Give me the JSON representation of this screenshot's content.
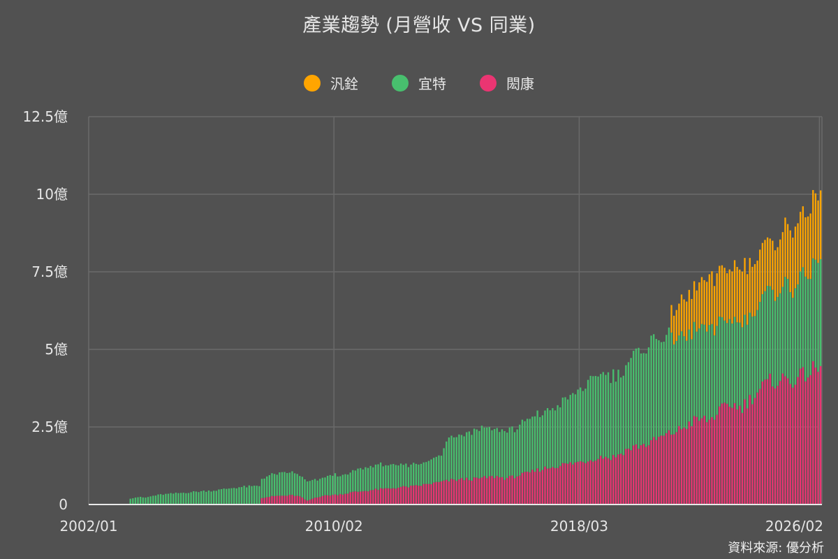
{
  "title": "產業趨勢 (月營收 VS 同業)",
  "source": "資料來源: 優分析",
  "legend": [
    {
      "label": "汎銓",
      "color": "#FFA500"
    },
    {
      "label": "宜特",
      "color": "#48BF6E"
    },
    {
      "label": "閎康",
      "color": "#EA3572"
    }
  ],
  "chart_data": {
    "type": "bar",
    "stacked": true,
    "title": "產業趨勢 (月營收 VS 同業)",
    "xlabel": "",
    "ylabel": "",
    "unit": "億",
    "y_ticks": [
      "0",
      "2.5億",
      "5億",
      "7.5億",
      "10億",
      "12.5億"
    ],
    "y_tick_values": [
      0,
      2.5,
      5,
      7.5,
      10,
      12.5
    ],
    "ylim": [
      0,
      12.5
    ],
    "x_ticks": [
      "2002/01",
      "2010/02",
      "2018/03",
      "2026/02"
    ],
    "x_range": [
      "2002/01",
      "2026/02"
    ],
    "grid": true,
    "legend_position": "top",
    "frequency": "monthly; values below are quarterly anchors (億) from start month, interpolated per month",
    "series": [
      {
        "name": "閎康",
        "color": "#EA3572",
        "start": "2007/09",
        "quarterly": [
          0.22,
          0.25,
          0.28,
          0.28,
          0.3,
          0.26,
          0.12,
          0.22,
          0.28,
          0.3,
          0.32,
          0.35,
          0.4,
          0.42,
          0.45,
          0.48,
          0.5,
          0.52,
          0.55,
          0.57,
          0.58,
          0.62,
          0.66,
          0.7,
          0.74,
          0.78,
          0.8,
          0.82,
          0.82,
          0.85,
          0.88,
          0.9,
          0.85,
          0.88,
          0.95,
          1.0,
          1.08,
          1.15,
          1.2,
          1.25,
          1.3,
          1.32,
          1.38,
          1.42,
          1.5,
          1.55,
          1.5,
          1.6,
          1.75,
          1.85,
          1.9,
          1.95,
          2.1,
          2.2,
          2.3,
          2.4,
          2.55,
          2.7,
          2.75,
          2.7,
          2.95,
          3.1,
          3.25,
          3.1,
          3.3,
          3.55,
          3.8,
          3.95,
          4.0,
          4.05,
          4.0,
          4.1,
          4.25,
          4.35,
          4.3,
          4.15,
          4.6,
          4.8,
          4.9,
          4.95,
          4.4
        ]
      },
      {
        "name": "宜特",
        "color": "#48BF6E",
        "start": "2003/05",
        "quarterly": [
          0.2,
          0.24,
          0.22,
          0.28,
          0.32,
          0.34,
          0.36,
          0.38,
          0.4,
          0.42,
          0.44,
          0.45,
          0.48,
          0.52,
          0.55,
          0.57,
          0.58,
          0.6,
          0.68,
          0.7,
          0.72,
          0.74,
          0.7,
          0.62,
          0.58,
          0.55,
          0.62,
          0.65,
          0.6,
          0.62,
          0.72,
          0.75,
          0.78,
          0.78,
          0.75,
          0.72,
          0.7,
          0.7,
          0.7,
          0.75,
          0.78,
          0.85,
          1.4,
          1.45,
          1.5,
          1.55,
          1.6,
          1.62,
          1.55,
          1.5,
          1.55,
          1.55,
          1.65,
          1.7,
          1.8,
          1.85,
          1.95,
          2.0,
          2.15,
          2.3,
          2.45,
          2.6,
          2.75,
          2.7,
          2.6,
          2.65,
          2.85,
          3.05,
          3.15,
          3.25,
          3.2,
          3.1,
          3.05,
          2.9,
          2.85,
          2.95,
          2.9,
          2.8,
          2.7,
          2.8,
          2.7,
          2.7,
          2.75,
          2.8,
          2.9,
          2.95,
          3.0,
          3.1,
          3.15,
          3.2,
          3.25,
          3.3,
          3.35,
          3.55,
          3.7,
          3.8,
          3.85,
          3.8,
          3.7,
          3.55,
          3.3
        ]
      },
      {
        "name": "汎銓",
        "color": "#FFA500",
        "start": "2021/03",
        "quarterly": [
          0.95,
          1.05,
          1.25,
          1.3,
          1.45,
          1.6,
          1.6,
          1.7,
          1.7,
          1.8,
          1.75,
          1.7,
          1.6,
          1.55,
          1.7,
          1.8,
          1.9,
          1.95,
          2.05,
          2.1
        ]
      }
    ]
  }
}
